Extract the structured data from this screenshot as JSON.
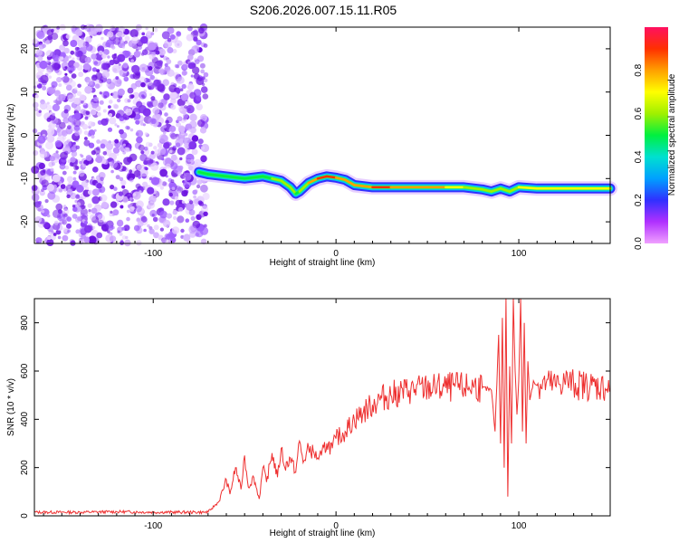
{
  "title": "S206.2026.007.15.11.R05",
  "chart_data": [
    {
      "type": "heatmap",
      "xlabel": "Height of straight line (km)",
      "ylabel": "Frequency (Hz)",
      "xlim": [
        -165,
        150
      ],
      "ylim": [
        -25,
        25
      ],
      "xticks": [
        -100,
        0,
        100
      ],
      "yticks": [
        -20,
        -10,
        0,
        10,
        20
      ],
      "colorbar": {
        "label": "Normalized spectral amplitude",
        "range": [
          0,
          1
        ],
        "ticks": [
          "0.0",
          "0.2",
          "0.4",
          "0.6",
          "0.8"
        ]
      },
      "noise_region_x": [
        -165,
        -75
      ],
      "ridge": {
        "x": [
          -75,
          -70,
          -60,
          -50,
          -40,
          -35,
          -30,
          -25,
          -22,
          -20,
          -15,
          -10,
          -5,
          0,
          5,
          10,
          20,
          30,
          40,
          50,
          60,
          70,
          80,
          85,
          90,
          95,
          100,
          110,
          120,
          130,
          140,
          150
        ],
        "y": [
          -8.5,
          -9,
          -9.5,
          -10,
          -9.5,
          -10,
          -10.5,
          -12,
          -13.5,
          -13,
          -11,
          -10,
          -9.5,
          -9.8,
          -10.3,
          -11.5,
          -12,
          -12,
          -12,
          -12,
          -12,
          -12,
          -12.5,
          -13,
          -12.3,
          -13,
          -12,
          -12.3,
          -12.3,
          -12.3,
          -12.3,
          -12.3
        ],
        "amplitude": [
          0.45,
          0.5,
          0.55,
          0.5,
          0.45,
          0.55,
          0.6,
          0.7,
          0.5,
          0.55,
          0.7,
          0.8,
          0.9,
          0.85,
          0.8,
          0.75,
          0.9,
          0.85,
          0.8,
          0.75,
          0.75,
          0.7,
          0.6,
          0.55,
          0.6,
          0.6,
          0.65,
          0.7,
          0.7,
          0.7,
          0.7,
          0.7
        ]
      }
    },
    {
      "type": "line",
      "xlabel": "Height of straight line (km)",
      "ylabel": "SNR (10 * v/v)",
      "xlim": [
        -165,
        150
      ],
      "ylim": [
        0,
        900
      ],
      "xticks": [
        -100,
        0,
        100
      ],
      "yticks": [
        0,
        200,
        400,
        600,
        800
      ],
      "series": [
        {
          "color": "#ee3030",
          "x": [
            -165,
            -140,
            -120,
            -100,
            -80,
            -70,
            -68,
            -64,
            -60,
            -58,
            -55,
            -52,
            -50,
            -48,
            -45,
            -42,
            -40,
            -38,
            -35,
            -32,
            -30,
            -28,
            -25,
            -22,
            -20,
            -18,
            -15,
            -12,
            -10,
            -8,
            -5,
            -2,
            0,
            5,
            10,
            15,
            20,
            25,
            30,
            35,
            40,
            50,
            60,
            65,
            70,
            75,
            80,
            85,
            87,
            89,
            90,
            91,
            92,
            93,
            94,
            95,
            96,
            97,
            98,
            99,
            100,
            101,
            102,
            103,
            104,
            105,
            106,
            108,
            110,
            115,
            120,
            125,
            130,
            140,
            150
          ],
          "y": [
            15,
            15,
            17,
            15,
            15,
            15,
            30,
            60,
            150,
            90,
            200,
            110,
            250,
            120,
            160,
            70,
            200,
            140,
            260,
            160,
            280,
            200,
            240,
            180,
            310,
            220,
            280,
            260,
            240,
            250,
            300,
            280,
            320,
            350,
            400,
            430,
            460,
            490,
            500,
            510,
            520,
            530,
            530,
            535,
            530,
            540,
            530,
            520,
            350,
            750,
            300,
            820,
            200,
            900,
            80,
            620,
            300,
            900,
            600,
            420,
            560,
            900,
            350,
            800,
            300,
            640,
            480,
            560,
            540,
            550,
            540,
            560,
            545,
            540,
            530
          ]
        }
      ]
    }
  ]
}
